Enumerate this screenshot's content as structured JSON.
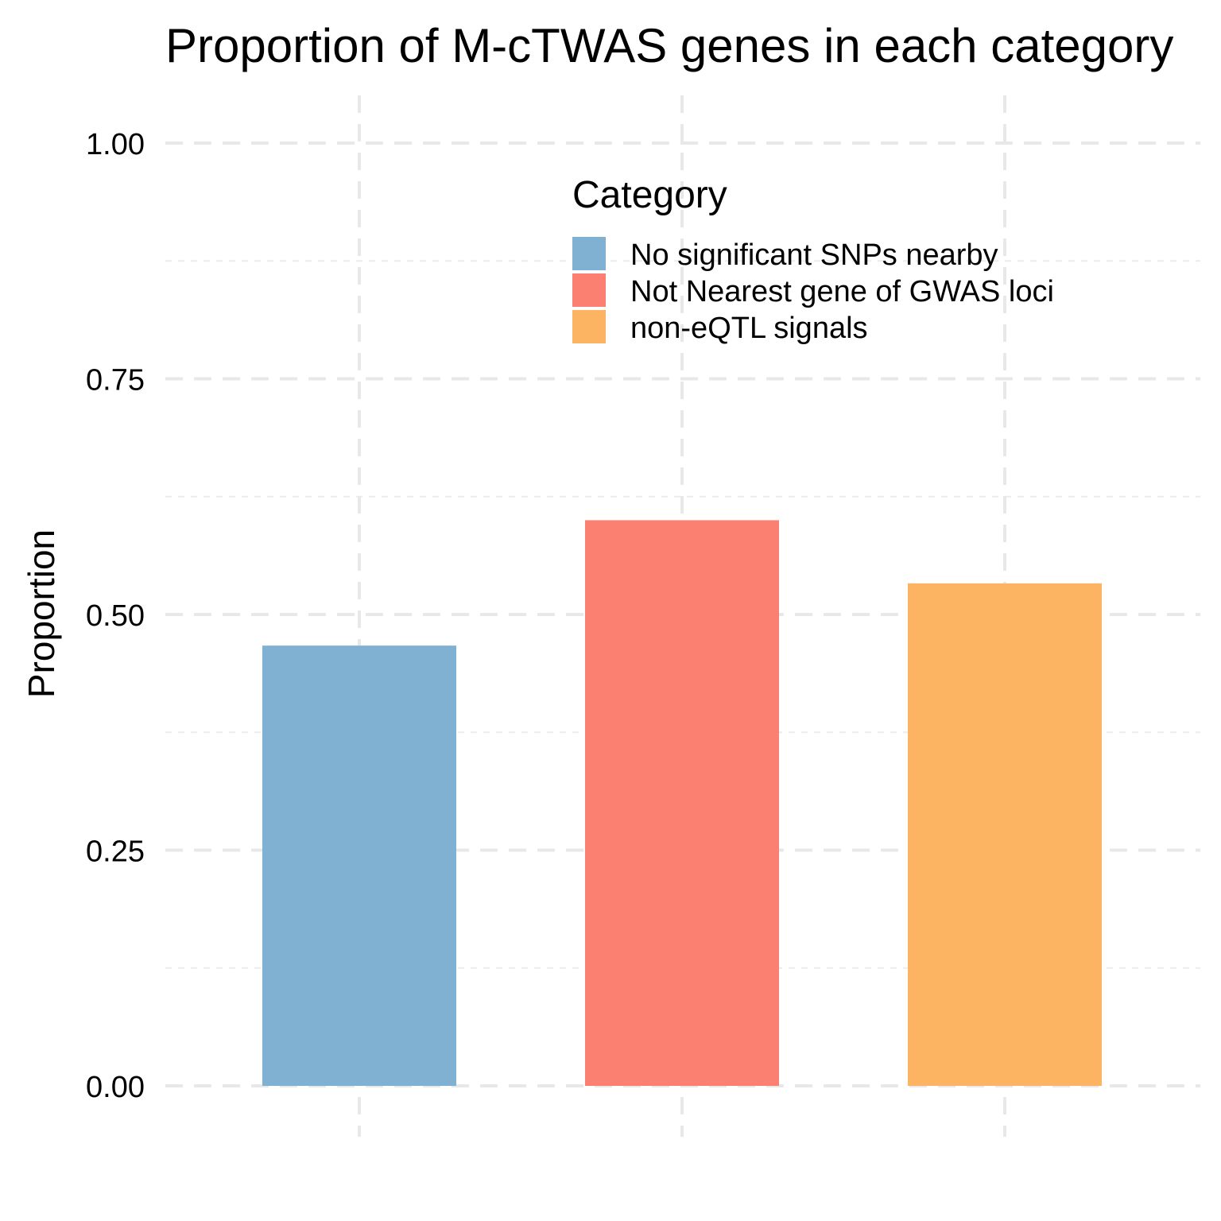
{
  "chart_data": {
    "type": "bar",
    "title": "Proportion of M-cTWAS genes in each category",
    "xlabel": "",
    "ylabel": "Proportion",
    "ylim": [
      0,
      1
    ],
    "yticks": [
      0,
      0.25,
      0.5,
      0.75,
      1.0
    ],
    "ytick_labels": [
      "0.00",
      "0.25",
      "0.50",
      "0.75",
      "1.00"
    ],
    "grid": true,
    "categories": [
      "No significant SNPs nearby",
      "Not Nearest gene of GWAS loci",
      "non-eQTL signals"
    ],
    "values": [
      0.467,
      0.6,
      0.533
    ],
    "colors": [
      "#80B1D3",
      "#FB8072",
      "#FDB462"
    ],
    "legend": {
      "title": "Category",
      "placement": "top-right",
      "entries": [
        "No significant SNPs nearby",
        "Not Nearest gene of GWAS loci",
        "non-eQTL signals"
      ]
    }
  }
}
